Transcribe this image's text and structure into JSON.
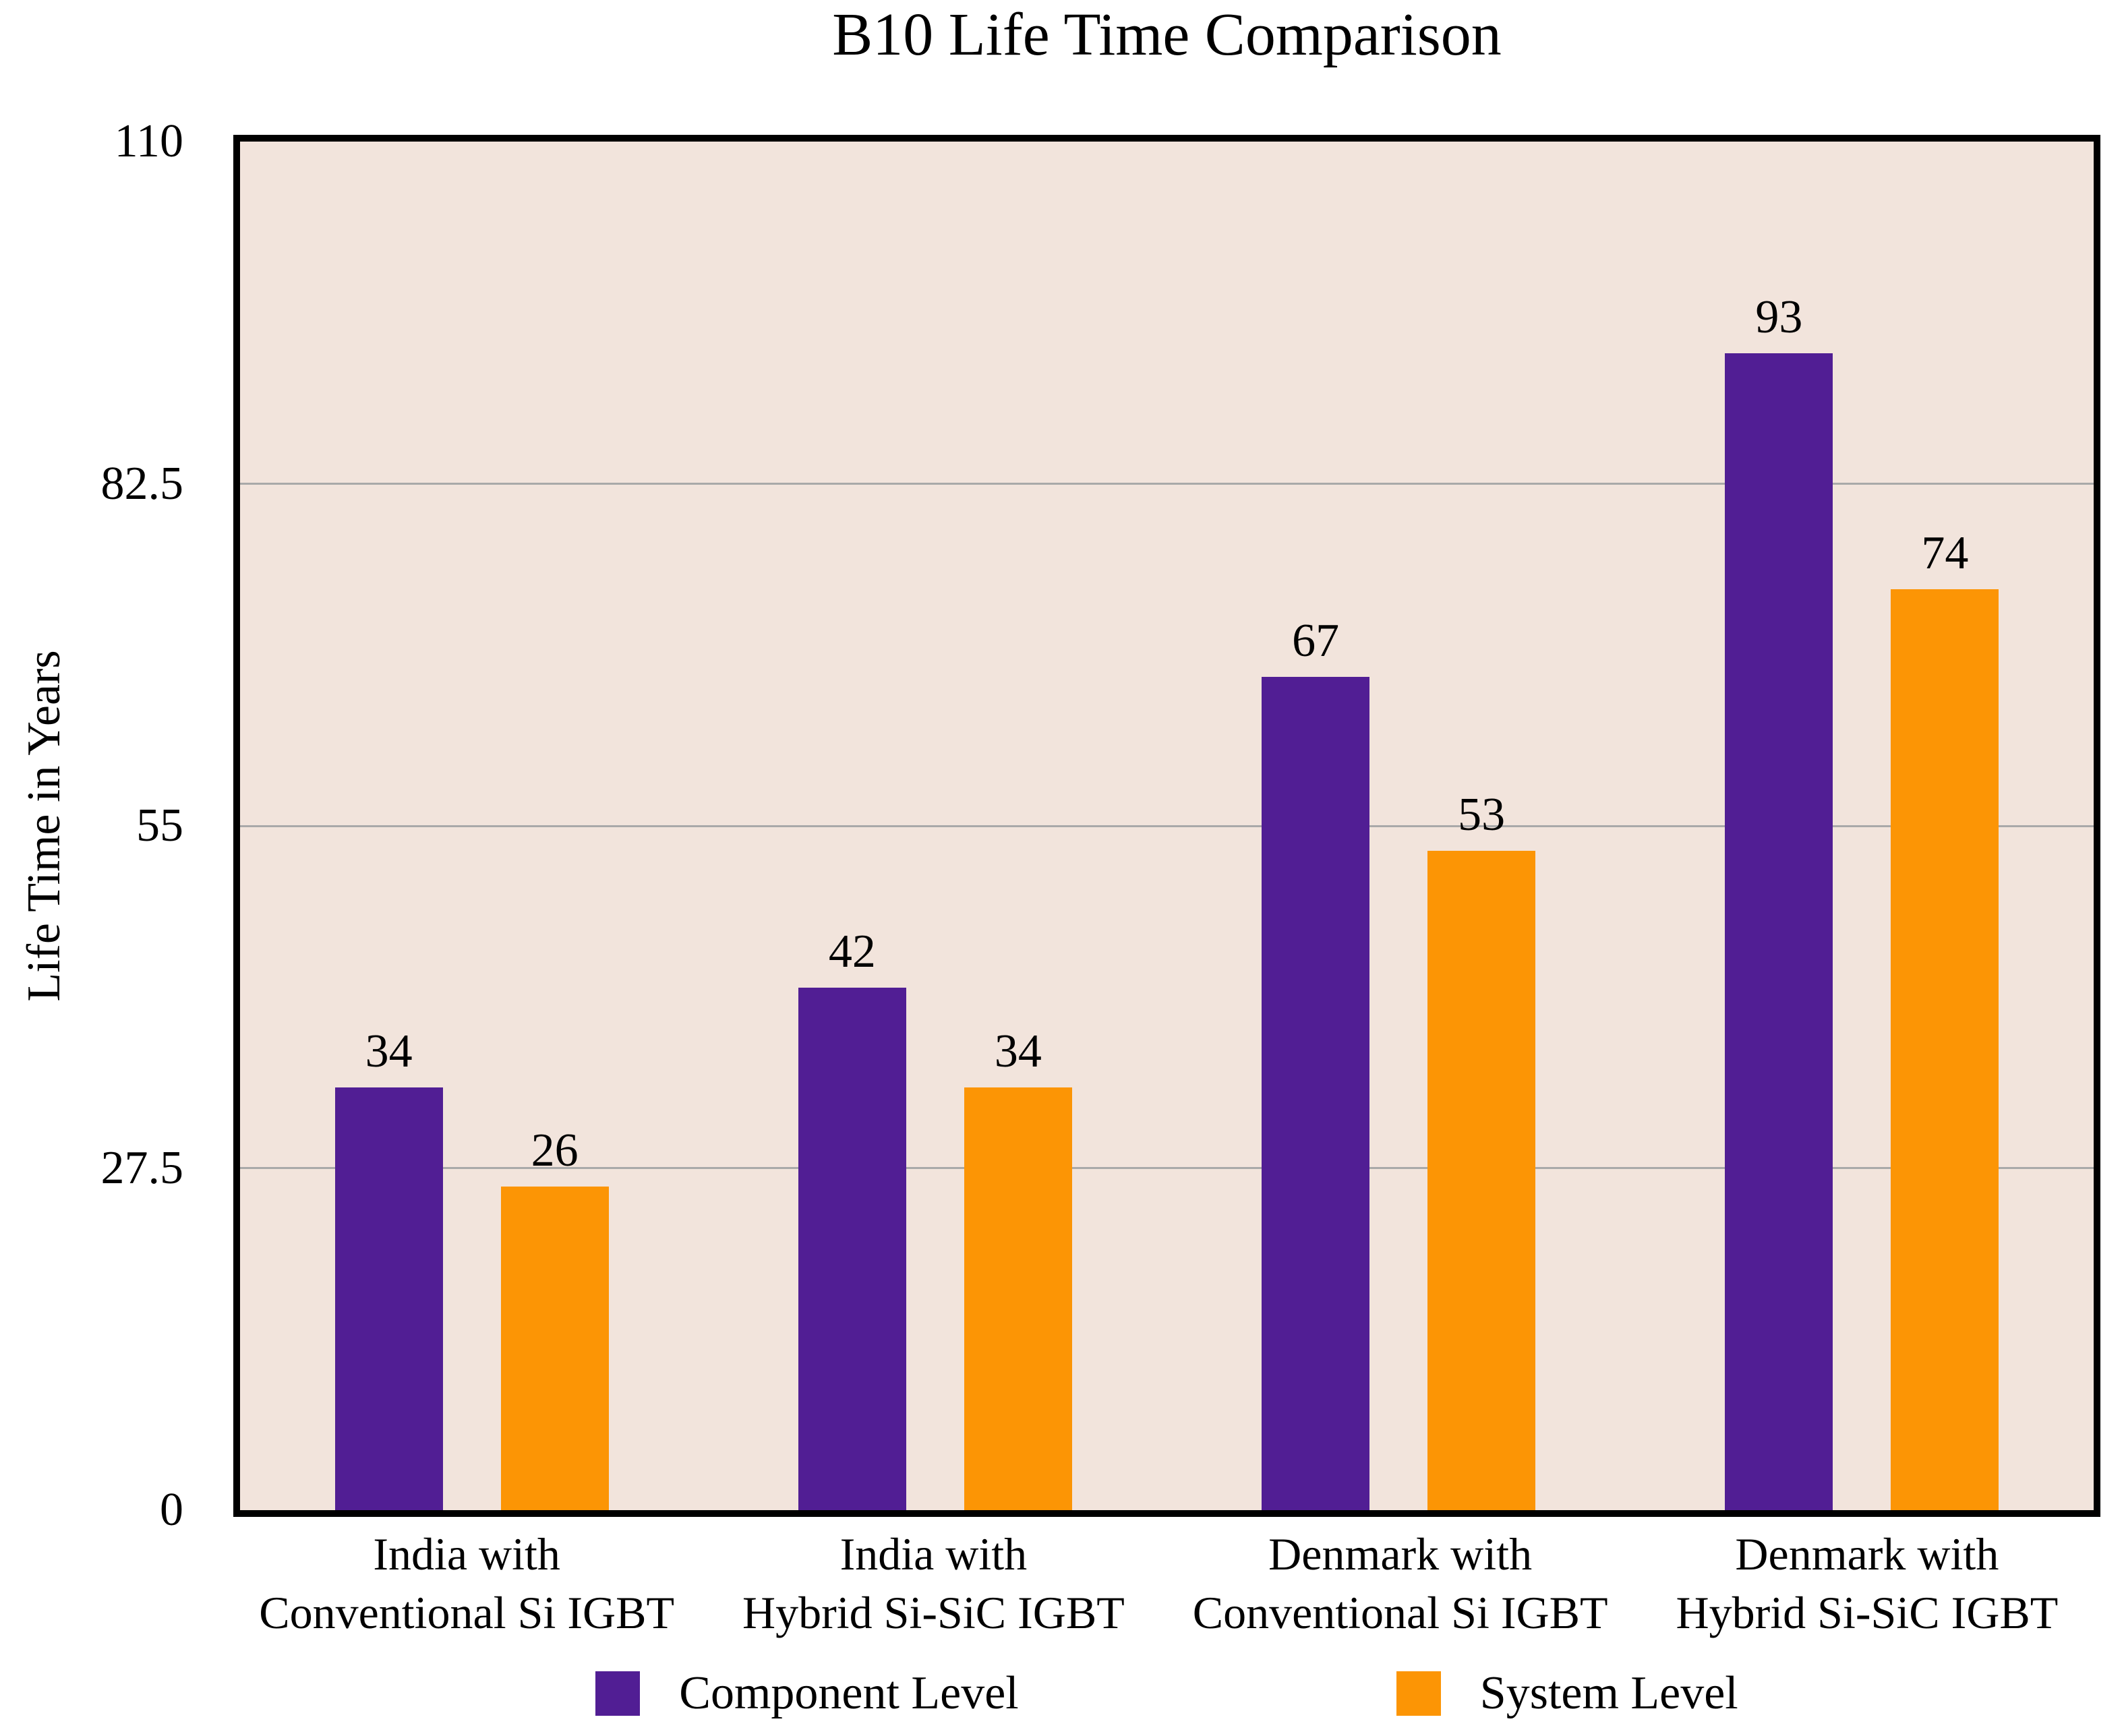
{
  "chart_data": {
    "type": "bar",
    "title": "B10 Life Time Comparison",
    "xlabel": "",
    "ylabel": "Life Time in Years",
    "categories": [
      "India with\nConventional Si IGBT",
      "India with\nHybrid Si-SiC IGBT",
      "Denmark with\nConventional Si IGBT",
      "Denmark with\nHybrid Si-SiC IGBT"
    ],
    "series": [
      {
        "name": "Component Level",
        "color": "#511E94",
        "values": [
          34,
          42,
          67,
          93
        ]
      },
      {
        "name": "System Level",
        "color": "#FC9505",
        "values": [
          26,
          34,
          53,
          74
        ]
      }
    ],
    "ylim": [
      0,
      110
    ],
    "yticks": [
      0,
      27.5,
      55,
      82.5,
      110
    ],
    "ytick_labels": [
      "0",
      "27.5",
      "55",
      "82.5",
      "110"
    ],
    "grid": true,
    "data_labels": true,
    "legend_position": "bottom",
    "colors": {
      "plot_bg": "#F2E4DC",
      "grid": "#A9A9A9",
      "frame": "#000000",
      "text": "#000000",
      "page_bg": "#FFFFFF"
    }
  }
}
